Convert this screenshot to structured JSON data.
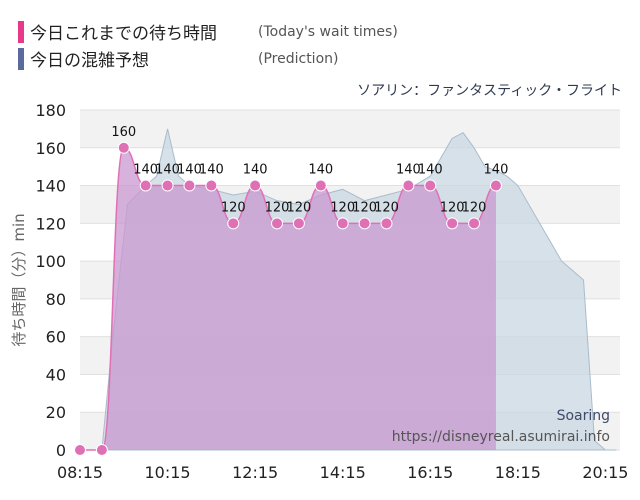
{
  "legend": {
    "items": [
      {
        "name": "今日これまでの待ち時間",
        "en": "(Today's wait times)",
        "color": "#e8388a"
      },
      {
        "name": "今日の混雑予想",
        "en": "(Prediction)",
        "color": "#5a6a9c"
      }
    ]
  },
  "subtitle": "ソアリン：ファンタスティック・フライト",
  "watermark": {
    "line1": "Soaring",
    "line2": "https://disneyreal.asumirai.info"
  },
  "colors": {
    "actual": "#e070b6",
    "actual_fill": "#c898d0",
    "prediction_fill": "#c9d7e2",
    "prediction_line": "#a9bccb"
  },
  "chart_data": {
    "type": "area",
    "title": "ソアリン：ファンタスティック・フライト",
    "ylabel": "待ち時間（分）min",
    "xlabel": "",
    "ylim": [
      0,
      180
    ],
    "yticks": [
      0,
      20,
      40,
      60,
      80,
      100,
      120,
      140,
      160,
      180
    ],
    "xticks": [
      "08:15",
      "10:15",
      "12:15",
      "14:15",
      "16:15",
      "18:15",
      "20:15"
    ],
    "grid": true,
    "legend_position": "top-left",
    "series": [
      {
        "name": "今日これまでの待ち時間",
        "x": [
          "08:15",
          "08:45",
          "09:15",
          "09:45",
          "10:15",
          "10:45",
          "11:15",
          "11:45",
          "12:15",
          "12:45",
          "13:15",
          "13:45",
          "14:15",
          "14:45",
          "15:15",
          "15:45",
          "16:15",
          "16:45",
          "17:15",
          "17:45"
        ],
        "values": [
          0,
          0,
          160,
          140,
          140,
          140,
          140,
          120,
          140,
          120,
          120,
          140,
          120,
          120,
          120,
          140,
          140,
          120,
          120,
          140
        ],
        "labels": [
          "",
          "",
          "160",
          "140",
          "140",
          "140",
          "140",
          "120",
          "140",
          "120",
          "120",
          "140",
          "120",
          "120",
          "120",
          "140",
          "140",
          "120",
          "120",
          "140"
        ]
      },
      {
        "name": "今日の混雑予想",
        "x": [
          "08:15",
          "08:45",
          "09:00",
          "09:20",
          "09:45",
          "10:00",
          "10:15",
          "10:30",
          "10:45",
          "11:15",
          "11:45",
          "12:15",
          "12:45",
          "13:15",
          "13:45",
          "14:15",
          "14:45",
          "15:15",
          "15:45",
          "16:15",
          "16:30",
          "16:45",
          "17:00",
          "17:15",
          "17:30",
          "17:45",
          "18:00",
          "18:15",
          "18:45",
          "19:15",
          "19:45",
          "20:00",
          "20:15",
          "20:30"
        ],
        "values": [
          0,
          0,
          60,
          130,
          140,
          145,
          170,
          145,
          140,
          138,
          135,
          137,
          132,
          130,
          135,
          138,
          132,
          135,
          138,
          145,
          155,
          165,
          168,
          160,
          150,
          148,
          145,
          140,
          120,
          100,
          90,
          5,
          0,
          0
        ]
      }
    ]
  }
}
